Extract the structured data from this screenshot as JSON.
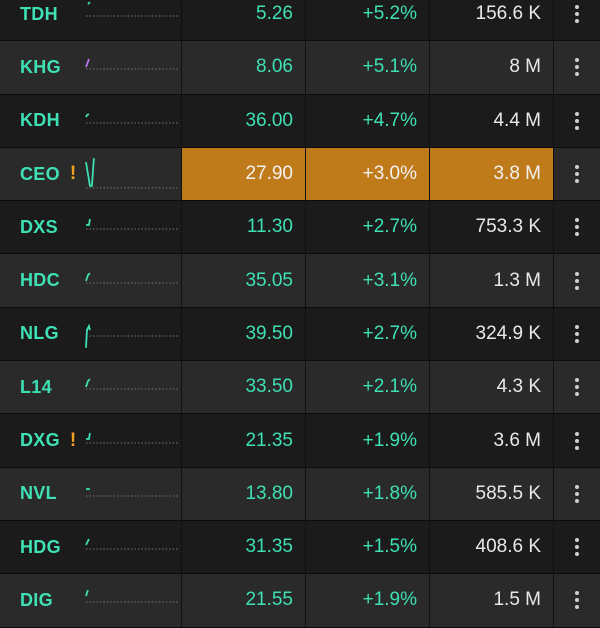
{
  "rows": [
    {
      "symbol": "TDH",
      "warn": "",
      "price": "5.26",
      "change": "+5.2%",
      "volume": "156.6 K",
      "spark_color": "#3ee0b4",
      "highlight": false
    },
    {
      "symbol": "KHG",
      "warn": "",
      "price": "8.06",
      "change": "+5.1%",
      "volume": "8 M",
      "spark_color": "#c070f0",
      "highlight": false
    },
    {
      "symbol": "KDH",
      "warn": "",
      "price": "36.00",
      "change": "+4.7%",
      "volume": "4.4 M",
      "spark_color": "#3ee0b4",
      "highlight": false
    },
    {
      "symbol": "CEO",
      "warn": "!",
      "price": "27.90",
      "change": "+3.0%",
      "volume": "3.8 M",
      "spark_color": "#3ee0b4",
      "highlight": true
    },
    {
      "symbol": "DXS",
      "warn": "",
      "price": "11.30",
      "change": "+2.7%",
      "volume": "753.3 K",
      "spark_color": "#3ee0b4",
      "highlight": false
    },
    {
      "symbol": "HDC",
      "warn": "",
      "price": "35.05",
      "change": "+3.1%",
      "volume": "1.3 M",
      "spark_color": "#3ee0b4",
      "highlight": false
    },
    {
      "symbol": "NLG",
      "warn": "",
      "price": "39.50",
      "change": "+2.7%",
      "volume": "324.9 K",
      "spark_color": "#3ee0b4",
      "highlight": false
    },
    {
      "symbol": "L14",
      "warn": "",
      "price": "33.50",
      "change": "+2.1%",
      "volume": "4.3 K",
      "spark_color": "#3ee0b4",
      "highlight": false
    },
    {
      "symbol": "DXG",
      "warn": "!",
      "price": "21.35",
      "change": "+1.9%",
      "volume": "3.6 M",
      "spark_color": "#3ee0b4",
      "highlight": false
    },
    {
      "symbol": "NVL",
      "warn": "",
      "price": "13.80",
      "change": "+1.8%",
      "volume": "585.5 K",
      "spark_color": "#3ee0b4",
      "highlight": false
    },
    {
      "symbol": "HDG",
      "warn": "",
      "price": "31.35",
      "change": "+1.5%",
      "volume": "408.6 K",
      "spark_color": "#3ee0b4",
      "highlight": false
    },
    {
      "symbol": "DIG",
      "warn": "",
      "price": "21.55",
      "change": "+1.9%",
      "volume": "1.5 M",
      "spark_color": "#3ee0b4",
      "highlight": false
    }
  ],
  "icons": {
    "menu": "more-vertical-icon",
    "warning": "exclamation-icon"
  }
}
